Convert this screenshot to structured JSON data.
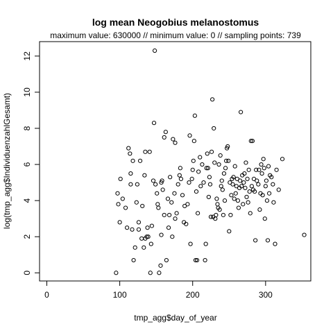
{
  "chart_data": {
    "type": "scatter",
    "title": "log mean Neogobius melanostomus",
    "subtitle": "maximum value: 630000  //  minimum value: 0  // sampling points: 739",
    "xlabel": "tmp_agg$day_of_year",
    "ylabel": "log(tmp_agg$IndividuenzahlGesamt)",
    "xlim": [
      -10,
      362
    ],
    "ylim": [
      -0.45,
      12.8
    ],
    "xticks": [
      0,
      100,
      200,
      300
    ],
    "yticks": [
      0,
      2,
      4,
      6,
      8,
      10,
      12
    ],
    "grid": false,
    "legend": "none",
    "point_color": "#000000",
    "points": [
      [
        95,
        0.0
      ],
      [
        97,
        4.4
      ],
      [
        98,
        3.8
      ],
      [
        100,
        2.8
      ],
      [
        101,
        5.2
      ],
      [
        104,
        4.1
      ],
      [
        108,
        3.6
      ],
      [
        110,
        2.5
      ],
      [
        112,
        6.9
      ],
      [
        114,
        6.6
      ],
      [
        115,
        4.9
      ],
      [
        115,
        5.5
      ],
      [
        117,
        2.4
      ],
      [
        118,
        6.2
      ],
      [
        119,
        0.7
      ],
      [
        121,
        1.4
      ],
      [
        123,
        3.9
      ],
      [
        124,
        4.9
      ],
      [
        126,
        2.4
      ],
      [
        126,
        2.8
      ],
      [
        128,
        6.2
      ],
      [
        130,
        1.9
      ],
      [
        131,
        3.7
      ],
      [
        133,
        1.4
      ],
      [
        134,
        5.4
      ],
      [
        135,
        6.7
      ],
      [
        135,
        1.9
      ],
      [
        137,
        2.0
      ],
      [
        138,
        2.5
      ],
      [
        139,
        2.0
      ],
      [
        141,
        6.7
      ],
      [
        142,
        0.0
      ],
      [
        143,
        1.6
      ],
      [
        144,
        2.6
      ],
      [
        146,
        5.1
      ],
      [
        147,
        8.3
      ],
      [
        148,
        12.3
      ],
      [
        149,
        4.9
      ],
      [
        151,
        4.4
      ],
      [
        152,
        3.8
      ],
      [
        153,
        3.6
      ],
      [
        154,
        0.0
      ],
      [
        156,
        0.4
      ],
      [
        157,
        2.1
      ],
      [
        157,
        5.0
      ],
      [
        158,
        5.1
      ],
      [
        159,
        4.6
      ],
      [
        161,
        7.5
      ],
      [
        161,
        3.2
      ],
      [
        163,
        7.8
      ],
      [
        164,
        0.7
      ],
      [
        166,
        4.1
      ],
      [
        167,
        2.5
      ],
      [
        168,
        3.2
      ],
      [
        169,
        5.3
      ],
      [
        171,
        3.9
      ],
      [
        172,
        2.0
      ],
      [
        173,
        7.4
      ],
      [
        175,
        4.4
      ],
      [
        176,
        3.0
      ],
      [
        176,
        7.2
      ],
      [
        178,
        3.3
      ],
      [
        180,
        4.9
      ],
      [
        182,
        5.4
      ],
      [
        183,
        5.8
      ],
      [
        184,
        5.2
      ],
      [
        186,
        4.3
      ],
      [
        188,
        2.8
      ],
      [
        189,
        3.7
      ],
      [
        191,
        2.7
      ],
      [
        193,
        3.8
      ],
      [
        195,
        5.0
      ],
      [
        196,
        7.6
      ],
      [
        197,
        1.6
      ],
      [
        199,
        5.2
      ],
      [
        200,
        5.7
      ],
      [
        201,
        6.2
      ],
      [
        202,
        7.3
      ],
      [
        203,
        8.7
      ],
      [
        204,
        0.7
      ],
      [
        205,
        4.5
      ],
      [
        206,
        0.7
      ],
      [
        207,
        3.3
      ],
      [
        208,
        5.6
      ],
      [
        210,
        6.4
      ],
      [
        211,
        4.8
      ],
      [
        213,
        6.0
      ],
      [
        215,
        5.0
      ],
      [
        217,
        0.7
      ],
      [
        218,
        1.6
      ],
      [
        219,
        5.8
      ],
      [
        220,
        6.6
      ],
      [
        221,
        5.8
      ],
      [
        222,
        4.2
      ],
      [
        223,
        5.3
      ],
      [
        224,
        4.9
      ],
      [
        225,
        3.1
      ],
      [
        226,
        6.7
      ],
      [
        227,
        9.6
      ],
      [
        228,
        3.1
      ],
      [
        229,
        8.0
      ],
      [
        230,
        6.1
      ],
      [
        231,
        3.0
      ],
      [
        232,
        3.2
      ],
      [
        233,
        4.1
      ],
      [
        234,
        3.8
      ],
      [
        235,
        3.6
      ],
      [
        236,
        6.0
      ],
      [
        237,
        3.5
      ],
      [
        238,
        6.5
      ],
      [
        239,
        4.8
      ],
      [
        240,
        5.1
      ],
      [
        241,
        4.6
      ],
      [
        242,
        3.2
      ],
      [
        243,
        5.5
      ],
      [
        244,
        4.0
      ],
      [
        245,
        5.8
      ],
      [
        246,
        6.2
      ],
      [
        247,
        6.9
      ],
      [
        248,
        7.0
      ],
      [
        249,
        6.2
      ],
      [
        250,
        2.3
      ],
      [
        251,
        5.0
      ],
      [
        252,
        3.2
      ],
      [
        253,
        4.3
      ],
      [
        254,
        5.2
      ],
      [
        255,
        4.9
      ],
      [
        256,
        5.3
      ],
      [
        257,
        4.1
      ],
      [
        258,
        5.9
      ],
      [
        259,
        4.4
      ],
      [
        260,
        4.8
      ],
      [
        261,
        5.2
      ],
      [
        262,
        4.0
      ],
      [
        263,
        3.6
      ],
      [
        264,
        4.7
      ],
      [
        265,
        5.1
      ],
      [
        266,
        8.9
      ],
      [
        267,
        4.8
      ],
      [
        268,
        5.4
      ],
      [
        269,
        3.8
      ],
      [
        270,
        5.0
      ],
      [
        271,
        5.5
      ],
      [
        272,
        4.7
      ],
      [
        273,
        6.1
      ],
      [
        274,
        4.2
      ],
      [
        275,
        5.2
      ],
      [
        276,
        3.9
      ],
      [
        277,
        5.7
      ],
      [
        278,
        4.5
      ],
      [
        279,
        3.3
      ],
      [
        280,
        7.3
      ],
      [
        281,
        4.8
      ],
      [
        282,
        7.3
      ],
      [
        283,
        4.6
      ],
      [
        284,
        5.2
      ],
      [
        285,
        4.5
      ],
      [
        286,
        1.8
      ],
      [
        287,
        5.7
      ],
      [
        288,
        5.1
      ],
      [
        290,
        4.9
      ],
      [
        291,
        5.7
      ],
      [
        292,
        3.5
      ],
      [
        293,
        4.4
      ],
      [
        294,
        6.0
      ],
      [
        295,
        5.5
      ],
      [
        296,
        4.3
      ],
      [
        297,
        6.3
      ],
      [
        298,
        5.8
      ],
      [
        299,
        3.0
      ],
      [
        300,
        4.8
      ],
      [
        301,
        5.1
      ],
      [
        302,
        4.0
      ],
      [
        303,
        1.8
      ],
      [
        304,
        5.9
      ],
      [
        305,
        4.4
      ],
      [
        306,
        5.4
      ],
      [
        308,
        5.3
      ],
      [
        310,
        4.9
      ],
      [
        311,
        3.9
      ],
      [
        313,
        1.6
      ],
      [
        315,
        5.7
      ],
      [
        318,
        4.6
      ],
      [
        323,
        6.3
      ],
      [
        353,
        2.1
      ]
    ]
  }
}
